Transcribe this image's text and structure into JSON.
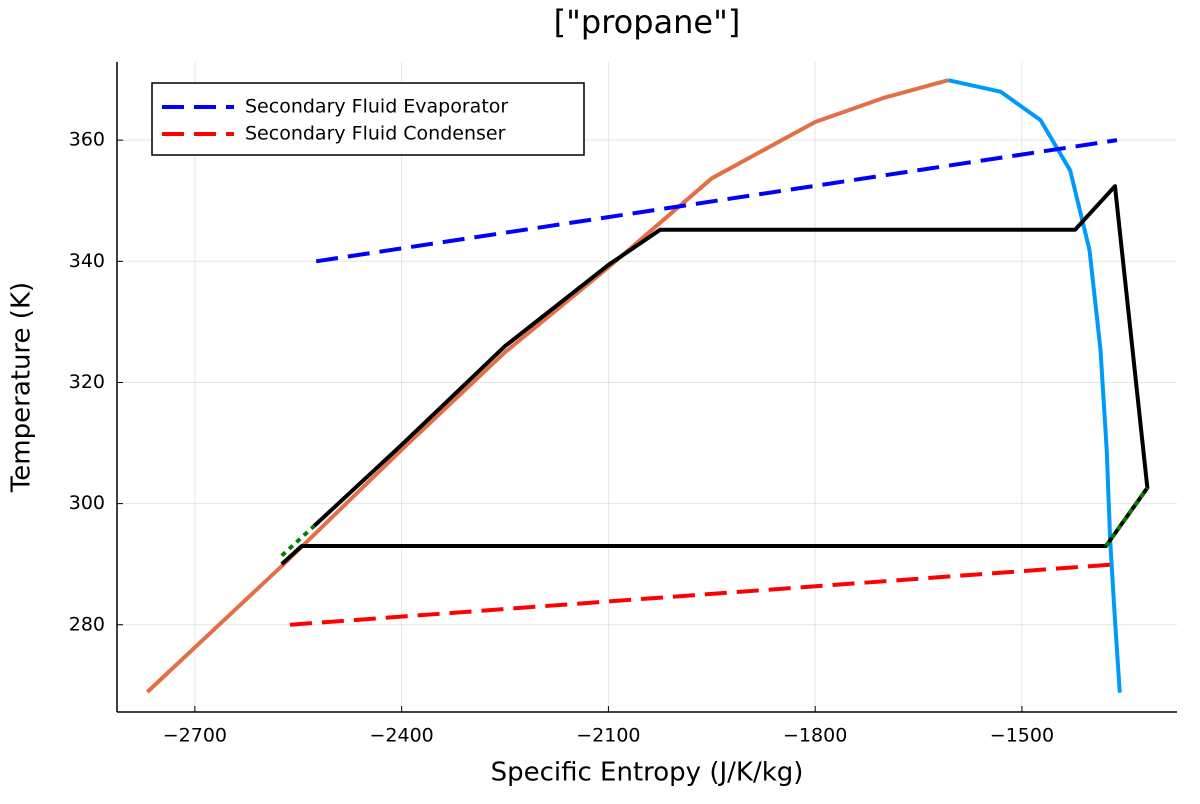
{
  "chart_data": {
    "type": "line",
    "title": "[\"propane\"]",
    "x_label": "Specific Entropy (J/K/kg)",
    "y_label": "Temperature (K)",
    "xlim": [
      -2813,
      -1275
    ],
    "ylim": [
      265.6,
      372.9
    ],
    "xticks": [
      {
        "value": -2700,
        "label": "−2700"
      },
      {
        "value": -2400,
        "label": "−2400"
      },
      {
        "value": -2100,
        "label": "−2100"
      },
      {
        "value": -1800,
        "label": "−1800"
      },
      {
        "value": -1500,
        "label": "−1500"
      }
    ],
    "yticks": [
      280,
      300,
      320,
      340,
      360
    ],
    "grid": true,
    "legend": "top-left",
    "series": [
      {
        "color": "#e26f46",
        "style": "solid",
        "x": [
          -2769,
          -2572,
          -2400,
          -2250,
          -2100,
          -1950,
          -1800,
          -1700,
          -1607
        ],
        "values": [
          268.9,
          289.9,
          308.9,
          325,
          339,
          353.7,
          363,
          367,
          369.9
        ]
      },
      {
        "color": "#009af9",
        "style": "solid",
        "x": [
          -1607,
          -1531,
          -1473,
          -1430,
          -1402,
          -1386,
          -1377,
          -1372,
          -1365,
          -1358
        ],
        "values": [
          369.9,
          368,
          363.3,
          355,
          341.9,
          325.4,
          308.9,
          294,
          280.8,
          268.8
        ]
      },
      {
        "name": "Secondary Fluid Evaporator",
        "color": "#0000ff",
        "style": "dashed",
        "x": [
          -2524,
          -1362
        ],
        "values": [
          340,
          360
        ]
      },
      {
        "name": "Secondary Fluid Condenser",
        "color": "#ff0000",
        "style": "dashed",
        "x": [
          -2562,
          -1362
        ],
        "values": [
          280,
          290
        ]
      },
      {
        "color": "#000000",
        "style": "solid",
        "x": [
          -2574,
          -2545,
          -1378,
          -1318,
          -1365,
          -1423,
          -2025,
          -2100,
          -2250,
          -2400,
          -2527
        ],
        "values": [
          290,
          293,
          293,
          302.6,
          352.4,
          345.2,
          345.2,
          339.4,
          326,
          309.7,
          296.3
        ]
      },
      {
        "color": "#008000",
        "style": "dotted",
        "x": [
          -2574,
          -2527,
          null,
          -1378,
          -1318
        ],
        "values": [
          291.4,
          296.3,
          null,
          293,
          302.6
        ]
      }
    ]
  }
}
